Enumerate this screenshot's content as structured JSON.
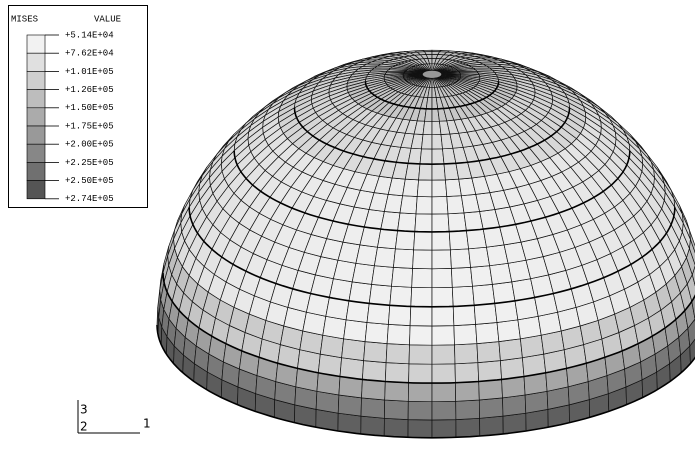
{
  "legend": {
    "title": "MISES",
    "value_header": "VALUE",
    "levels": [
      "+5.14E+04",
      "+7.62E+04",
      "+1.01E+05",
      "+1.26E+05",
      "+1.50E+05",
      "+1.75E+05",
      "+2.00E+05",
      "+2.25E+05",
      "+2.50E+05",
      "+2.74E+05"
    ]
  },
  "triad": {
    "axis_3": "3",
    "axis_2": "2",
    "axis_1": "1"
  }
}
